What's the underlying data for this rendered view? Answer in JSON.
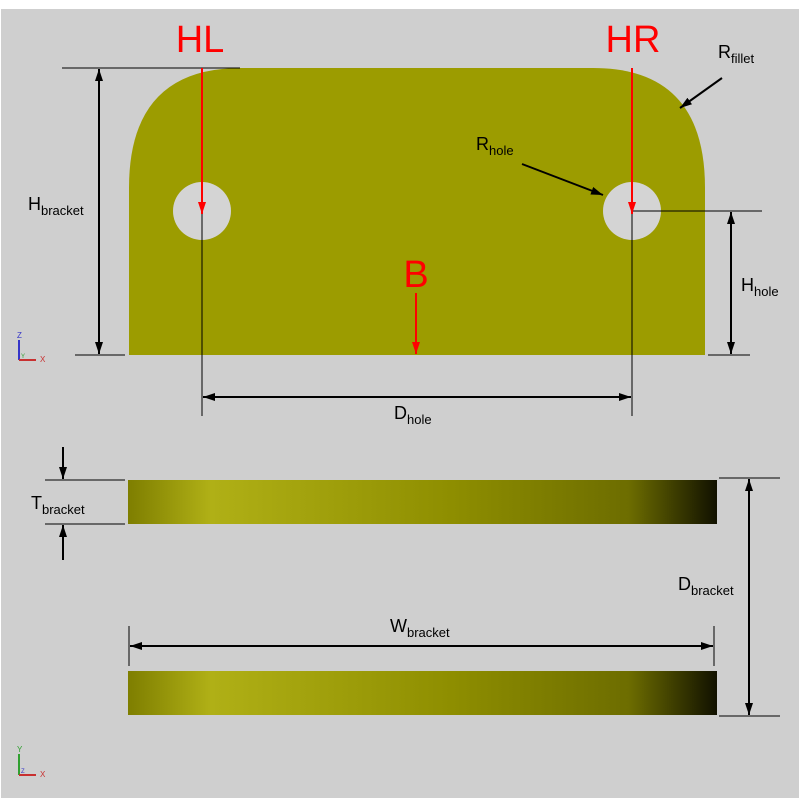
{
  "colors": {
    "background": "#cfcfcf",
    "part": "#9c9c00",
    "hole": "#d4d4d4",
    "load_arrow": "#ff0000",
    "dimension": "#000000"
  },
  "load_labels": {
    "left": "HL",
    "right": "HR",
    "bottom": "B"
  },
  "dimensions": {
    "h_bracket": {
      "main": "H",
      "sub": "bracket"
    },
    "r_fillet": {
      "main": "R",
      "sub": "fillet"
    },
    "r_hole": {
      "main": "R",
      "sub": "hole"
    },
    "h_hole": {
      "main": "H",
      "sub": "hole"
    },
    "d_hole": {
      "main": "D",
      "sub": "hole"
    },
    "t_bracket": {
      "main": "T",
      "sub": "bracket"
    },
    "w_bracket": {
      "main": "W",
      "sub": "bracket"
    },
    "d_bracket": {
      "main": "D",
      "sub": "bracket"
    }
  },
  "triads": {
    "front": {
      "up_axis": "Z",
      "right_axis": "X",
      "depth_axis": "Y"
    },
    "top": {
      "up_axis": "Y",
      "right_axis": "X",
      "depth_axis": "Z"
    }
  }
}
